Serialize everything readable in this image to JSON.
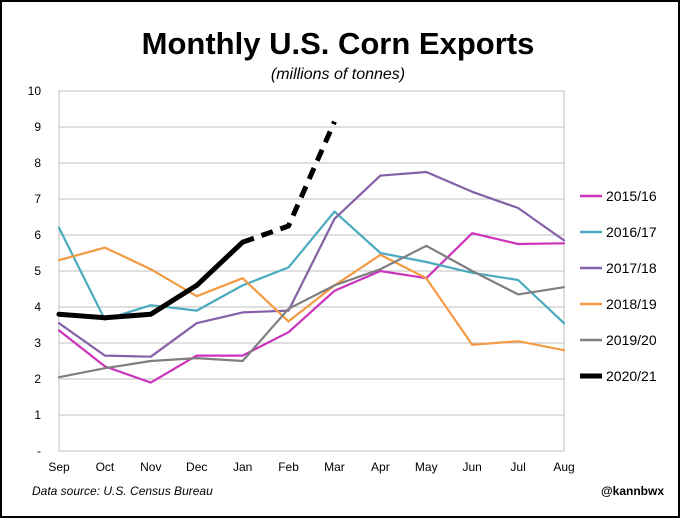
{
  "chart_data": {
    "type": "line",
    "title": "Monthly U.S. Corn Exports",
    "subtitle": "(millions of tonnes)",
    "categories": [
      "Sep",
      "Oct",
      "Nov",
      "Dec",
      "Jan",
      "Feb",
      "Mar",
      "Apr",
      "May",
      "Jun",
      "Jul",
      "Aug"
    ],
    "ylim": [
      0,
      10
    ],
    "yticks": [
      "-",
      "1",
      "2",
      "3",
      "4",
      "5",
      "6",
      "7",
      "8",
      "9",
      "10"
    ],
    "grid": true,
    "legend_position": "right",
    "series": [
      {
        "name": "2015/16",
        "color": "#cc33bb",
        "values": [
          3.35,
          2.35,
          1.9,
          2.65,
          2.65,
          3.3,
          4.45,
          5.0,
          4.8,
          6.05,
          5.75,
          5.77
        ]
      },
      {
        "name": "2016/17",
        "color": "#4aaabf",
        "values": [
          6.2,
          3.65,
          4.05,
          3.9,
          4.6,
          5.1,
          6.65,
          5.5,
          5.25,
          4.95,
          4.75,
          3.55
        ]
      },
      {
        "name": "2017/18",
        "color": "#8460a8",
        "values": [
          3.55,
          2.65,
          2.62,
          3.55,
          3.85,
          3.9,
          6.45,
          7.65,
          7.75,
          7.2,
          6.75,
          5.85
        ]
      },
      {
        "name": "2018/19",
        "color": "#f39a43",
        "values": [
          5.3,
          5.65,
          5.05,
          4.3,
          4.8,
          3.6,
          4.6,
          5.45,
          4.8,
          2.95,
          3.05,
          2.8
        ]
      },
      {
        "name": "2019/20",
        "color": "#7f7f7f",
        "values": [
          2.05,
          2.3,
          2.5,
          2.58,
          2.5,
          3.95,
          4.6,
          5.05,
          5.7,
          5.0,
          4.35,
          4.55
        ]
      },
      {
        "name": "2020/21",
        "color": "#000000",
        "values": [
          3.8,
          3.7,
          3.8,
          4.6,
          5.8,
          null,
          null,
          null,
          null,
          null,
          null,
          null
        ],
        "projected": [
          null,
          null,
          null,
          null,
          5.8,
          6.25,
          9.15,
          null,
          null,
          null,
          null,
          null
        ]
      }
    ]
  },
  "footer": {
    "source": "Data source: U.S. Census Bureau",
    "handle": "@kannbwx"
  }
}
